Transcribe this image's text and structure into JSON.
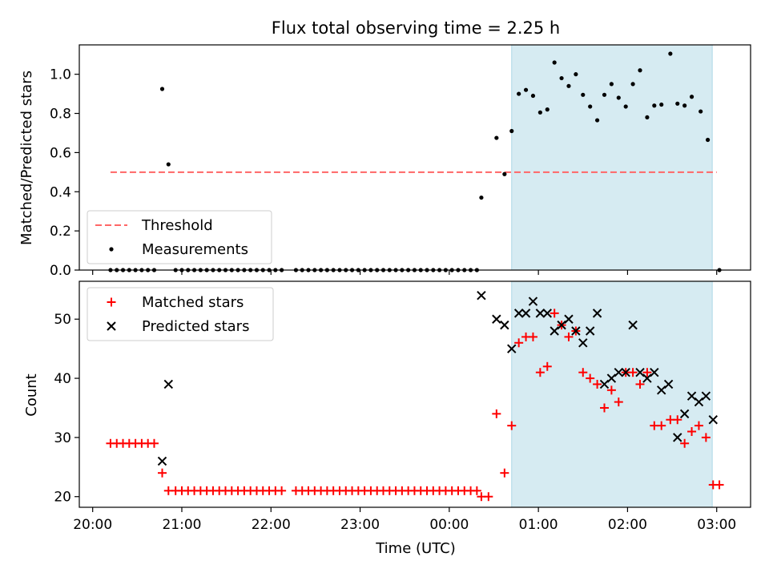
{
  "chart_data": {
    "type": "scatter",
    "title": "Flux total observing time = 2.25 h",
    "xlabel": "Time (UTC)",
    "x_ticks": [
      "20:00",
      "21:00",
      "22:00",
      "23:00",
      "00:00",
      "01:00",
      "02:00",
      "03:00"
    ],
    "x_range_hours": [
      19.85,
      27.38
    ],
    "highlight_span_hours": [
      24.7,
      26.95
    ],
    "highlight_color": "#add8e6",
    "subplots": [
      {
        "ylabel": "Matched/Predicted stars",
        "ylim": [
          0,
          1.15
        ],
        "y_ticks": [
          "0.0",
          "0.2",
          "0.4",
          "0.6",
          "0.8",
          "1.0"
        ],
        "legend_position": "lower-left",
        "series": [
          {
            "name": "Threshold",
            "kind": "line-dashed",
            "color": "#ff6666",
            "x_hours": [
              20.2,
              27.0
            ],
            "y": [
              0.5,
              0.5
            ]
          },
          {
            "name": "Measurements",
            "kind": "dot",
            "color": "#000000",
            "points": [
              [
                20.2,
                0
              ],
              [
                20.27,
                0
              ],
              [
                20.34,
                0
              ],
              [
                20.41,
                0
              ],
              [
                20.48,
                0
              ],
              [
                20.55,
                0
              ],
              [
                20.62,
                0
              ],
              [
                20.69,
                0
              ],
              [
                20.78,
                0.925
              ],
              [
                20.85,
                0.54
              ],
              [
                20.93,
                0
              ],
              [
                21.0,
                0
              ],
              [
                21.07,
                0
              ],
              [
                21.14,
                0
              ],
              [
                21.21,
                0
              ],
              [
                21.28,
                0
              ],
              [
                21.35,
                0
              ],
              [
                21.42,
                0
              ],
              [
                21.49,
                0
              ],
              [
                21.56,
                0
              ],
              [
                21.63,
                0
              ],
              [
                21.7,
                0
              ],
              [
                21.77,
                0
              ],
              [
                21.84,
                0
              ],
              [
                21.91,
                0
              ],
              [
                21.98,
                0
              ],
              [
                22.05,
                0
              ],
              [
                22.12,
                0
              ],
              [
                22.28,
                0
              ],
              [
                22.35,
                0
              ],
              [
                22.42,
                0
              ],
              [
                22.49,
                0
              ],
              [
                22.56,
                0
              ],
              [
                22.63,
                0
              ],
              [
                22.7,
                0
              ],
              [
                22.77,
                0
              ],
              [
                22.84,
                0
              ],
              [
                22.91,
                0
              ],
              [
                22.98,
                0
              ],
              [
                23.05,
                0
              ],
              [
                23.12,
                0
              ],
              [
                23.19,
                0
              ],
              [
                23.26,
                0
              ],
              [
                23.33,
                0
              ],
              [
                23.4,
                0
              ],
              [
                23.47,
                0
              ],
              [
                23.54,
                0
              ],
              [
                23.61,
                0
              ],
              [
                23.68,
                0
              ],
              [
                23.75,
                0
              ],
              [
                23.82,
                0
              ],
              [
                23.89,
                0
              ],
              [
                23.96,
                0
              ],
              [
                24.03,
                0
              ],
              [
                24.1,
                0
              ],
              [
                24.17,
                0
              ],
              [
                24.24,
                0
              ],
              [
                24.31,
                0
              ],
              [
                24.36,
                0.37
              ],
              [
                24.53,
                0.675
              ],
              [
                24.62,
                0.49
              ],
              [
                24.7,
                0.71
              ],
              [
                24.78,
                0.9
              ],
              [
                24.86,
                0.92
              ],
              [
                24.94,
                0.89
              ],
              [
                25.02,
                0.805
              ],
              [
                25.1,
                0.82
              ],
              [
                25.18,
                1.06
              ],
              [
                25.26,
                0.98
              ],
              [
                25.34,
                0.94
              ],
              [
                25.42,
                1.0
              ],
              [
                25.5,
                0.895
              ],
              [
                25.58,
                0.835
              ],
              [
                25.66,
                0.765
              ],
              [
                25.74,
                0.895
              ],
              [
                25.82,
                0.95
              ],
              [
                25.9,
                0.88
              ],
              [
                25.98,
                0.835
              ],
              [
                26.06,
                0.95
              ],
              [
                26.14,
                1.02
              ],
              [
                26.22,
                0.78
              ],
              [
                26.3,
                0.84
              ],
              [
                26.38,
                0.845
              ],
              [
                26.48,
                1.105
              ],
              [
                26.56,
                0.85
              ],
              [
                26.64,
                0.84
              ],
              [
                26.72,
                0.885
              ],
              [
                26.82,
                0.81
              ],
              [
                26.9,
                0.665
              ],
              [
                27.03,
                0
              ]
            ]
          }
        ]
      },
      {
        "ylabel": "Count",
        "ylim": [
          18.2,
          56.4
        ],
        "y_ticks": [
          "20",
          "30",
          "40",
          "50"
        ],
        "legend_position": "upper-left",
        "series": [
          {
            "name": "Matched stars",
            "kind": "plus",
            "color": "#ff0000",
            "points": [
              [
                20.2,
                29
              ],
              [
                20.27,
                29
              ],
              [
                20.34,
                29
              ],
              [
                20.41,
                29
              ],
              [
                20.48,
                29
              ],
              [
                20.55,
                29
              ],
              [
                20.62,
                29
              ],
              [
                20.69,
                29
              ],
              [
                20.78,
                24
              ],
              [
                20.85,
                21
              ],
              [
                20.93,
                21
              ],
              [
                21.0,
                21
              ],
              [
                21.07,
                21
              ],
              [
                21.14,
                21
              ],
              [
                21.21,
                21
              ],
              [
                21.28,
                21
              ],
              [
                21.35,
                21
              ],
              [
                21.42,
                21
              ],
              [
                21.49,
                21
              ],
              [
                21.56,
                21
              ],
              [
                21.63,
                21
              ],
              [
                21.7,
                21
              ],
              [
                21.77,
                21
              ],
              [
                21.84,
                21
              ],
              [
                21.91,
                21
              ],
              [
                21.98,
                21
              ],
              [
                22.05,
                21
              ],
              [
                22.12,
                21
              ],
              [
                22.28,
                21
              ],
              [
                22.35,
                21
              ],
              [
                22.42,
                21
              ],
              [
                22.49,
                21
              ],
              [
                22.56,
                21
              ],
              [
                22.63,
                21
              ],
              [
                22.7,
                21
              ],
              [
                22.77,
                21
              ],
              [
                22.84,
                21
              ],
              [
                22.91,
                21
              ],
              [
                22.98,
                21
              ],
              [
                23.05,
                21
              ],
              [
                23.12,
                21
              ],
              [
                23.19,
                21
              ],
              [
                23.26,
                21
              ],
              [
                23.33,
                21
              ],
              [
                23.4,
                21
              ],
              [
                23.47,
                21
              ],
              [
                23.54,
                21
              ],
              [
                23.61,
                21
              ],
              [
                23.68,
                21
              ],
              [
                23.75,
                21
              ],
              [
                23.82,
                21
              ],
              [
                23.89,
                21
              ],
              [
                23.96,
                21
              ],
              [
                24.03,
                21
              ],
              [
                24.1,
                21
              ],
              [
                24.17,
                21
              ],
              [
                24.24,
                21
              ],
              [
                24.31,
                21
              ],
              [
                24.36,
                20
              ],
              [
                24.44,
                20
              ],
              [
                24.53,
                34
              ],
              [
                24.62,
                24
              ],
              [
                24.7,
                32
              ],
              [
                24.78,
                46
              ],
              [
                24.86,
                47
              ],
              [
                24.94,
                47
              ],
              [
                25.02,
                41
              ],
              [
                25.1,
                42
              ],
              [
                25.18,
                51
              ],
              [
                25.26,
                49
              ],
              [
                25.34,
                47
              ],
              [
                25.42,
                48
              ],
              [
                25.5,
                41
              ],
              [
                25.58,
                40
              ],
              [
                25.66,
                39
              ],
              [
                25.74,
                35
              ],
              [
                25.82,
                38
              ],
              [
                25.9,
                36
              ],
              [
                25.98,
                41
              ],
              [
                26.06,
                41
              ],
              [
                26.14,
                39
              ],
              [
                26.22,
                41
              ],
              [
                26.3,
                32
              ],
              [
                26.38,
                32
              ],
              [
                26.48,
                33
              ],
              [
                26.56,
                33
              ],
              [
                26.64,
                29
              ],
              [
                26.72,
                31
              ],
              [
                26.8,
                32
              ],
              [
                26.88,
                30
              ],
              [
                26.96,
                22
              ],
              [
                27.03,
                22
              ]
            ]
          },
          {
            "name": "Predicted stars",
            "kind": "cross",
            "color": "#000000",
            "points": [
              [
                20.78,
                26
              ],
              [
                20.85,
                39
              ],
              [
                24.36,
                54
              ],
              [
                24.53,
                50
              ],
              [
                24.62,
                49
              ],
              [
                24.7,
                45
              ],
              [
                24.78,
                51
              ],
              [
                24.86,
                51
              ],
              [
                24.94,
                53
              ],
              [
                25.02,
                51
              ],
              [
                25.1,
                51
              ],
              [
                25.18,
                48
              ],
              [
                25.26,
                49
              ],
              [
                25.34,
                50
              ],
              [
                25.42,
                48
              ],
              [
                25.5,
                46
              ],
              [
                25.58,
                48
              ],
              [
                25.66,
                51
              ],
              [
                25.74,
                39
              ],
              [
                25.82,
                40
              ],
              [
                25.9,
                41
              ],
              [
                25.98,
                41
              ],
              [
                26.06,
                49
              ],
              [
                26.14,
                41
              ],
              [
                26.22,
                40
              ],
              [
                26.3,
                41
              ],
              [
                26.38,
                38
              ],
              [
                26.46,
                39
              ],
              [
                26.56,
                30
              ],
              [
                26.64,
                34
              ],
              [
                26.72,
                37
              ],
              [
                26.8,
                36
              ],
              [
                26.88,
                37
              ],
              [
                26.96,
                33
              ]
            ]
          }
        ]
      }
    ]
  }
}
